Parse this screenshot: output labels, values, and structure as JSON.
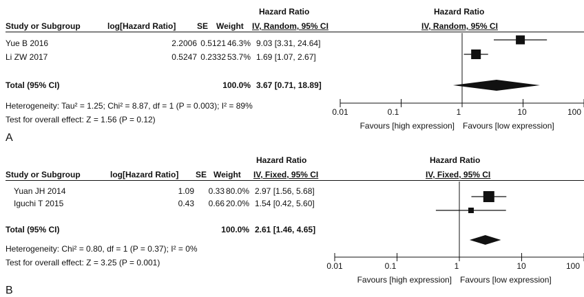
{
  "panels": [
    {
      "letter": "A",
      "header_top": "Hazard Ratio",
      "header_plot_top": "Hazard Ratio",
      "columns": {
        "study": "Study or Subgroup",
        "loghr": "log[Hazard Ratio]",
        "se": "SE",
        "weight": "Weight",
        "ci": "IV, Random, 95% CI",
        "plot": "IV, Random, 95% CI"
      },
      "rows": [
        {
          "study": "Yue B 2016",
          "loghr": "2.2006",
          "se": "0.5121",
          "weight": "46.3%",
          "ci": "9.03 [3.31, 24.64]"
        },
        {
          "study": "Li ZW 2017",
          "loghr": "0.5247",
          "se": "0.2332",
          "weight": "53.7%",
          "ci": "1.69 [1.07, 2.67]"
        }
      ],
      "total": {
        "label": "Total (95% CI)",
        "weight": "100.0%",
        "ci": "3.67 [0.71, 18.89]"
      },
      "heterogeneity": "Heterogeneity: Tau² = 1.25; Chi² = 8.87, df = 1 (P = 0.003); I² = 89%",
      "overall": "Test for overall effect: Z = 1.56 (P = 0.12)",
      "axis_ticks": [
        "0.01",
        "0.1",
        "1",
        "10",
        "100"
      ],
      "favours_left": "Favours [high expression]",
      "favours_right": "Favours [low expression]"
    },
    {
      "letter": "B",
      "header_top": "Hazard Ratio",
      "header_plot_top": "Hazard Ratio",
      "columns": {
        "study": "Study or Subgroup",
        "loghr": "log[Hazard Ratio]",
        "se": "SE",
        "weight": "Weight",
        "ci": "IV, Fixed, 95% CI",
        "plot": "IV, Fixed, 95% CI"
      },
      "rows": [
        {
          "study": "Yuan JH 2014",
          "loghr": "1.09",
          "se": "0.33",
          "weight": "80.0%",
          "ci": "2.97 [1.56, 5.68]"
        },
        {
          "study": "Iguchi T 2015",
          "loghr": "0.43",
          "se": "0.66",
          "weight": "20.0%",
          "ci": "1.54 [0.42, 5.60]"
        }
      ],
      "total": {
        "label": "Total (95% CI)",
        "weight": "100.0%",
        "ci": "2.61 [1.46, 4.65]"
      },
      "heterogeneity": "Heterogeneity: Chi² = 0.80, df = 1 (P = 0.37); I² = 0%",
      "overall": "Test for overall effect: Z = 3.25 (P = 0.001)",
      "axis_ticks": [
        "0.01",
        "0.1",
        "1",
        "10",
        "100"
      ],
      "favours_left": "Favours [high expression]",
      "favours_right": "Favours [low expression]"
    }
  ],
  "chart_data": [
    {
      "type": "forest",
      "panel": "A",
      "scale": "log",
      "xlim": [
        0.01,
        100
      ],
      "studies": [
        {
          "name": "Yue B 2016",
          "hr": 9.03,
          "lo": 3.31,
          "hi": 24.64,
          "weight": 46.3
        },
        {
          "name": "Li ZW 2017",
          "hr": 1.69,
          "lo": 1.07,
          "hi": 2.67,
          "weight": 53.7
        }
      ],
      "total": {
        "hr": 3.67,
        "lo": 0.71,
        "hi": 18.89
      }
    },
    {
      "type": "forest",
      "panel": "B",
      "scale": "log",
      "xlim": [
        0.01,
        100
      ],
      "studies": [
        {
          "name": "Yuan JH 2014",
          "hr": 2.97,
          "lo": 1.56,
          "hi": 5.68,
          "weight": 80.0
        },
        {
          "name": "Iguchi T 2015",
          "hr": 1.54,
          "lo": 0.42,
          "hi": 5.6,
          "weight": 20.0
        }
      ],
      "total": {
        "hr": 2.61,
        "lo": 1.46,
        "hi": 4.65
      }
    }
  ]
}
